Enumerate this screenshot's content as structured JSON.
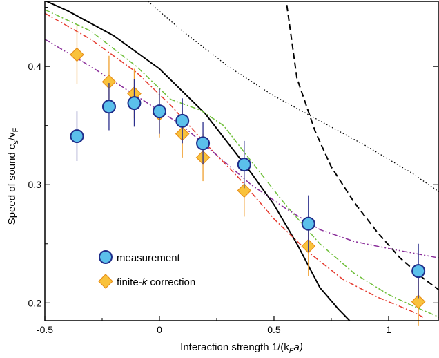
{
  "chart_data": {
    "type": "scatter",
    "xlabel": "Interaction strength  1/(k",
    "xlabel_sub": "F",
    "xlabel_end": "a)",
    "ylabel": "Speed of sound  c",
    "ylabel_sub1": "s",
    "ylabel_mid": "/v",
    "ylabel_sub2": "F",
    "xlim": [
      -0.5,
      1.22
    ],
    "ylim": [
      0.185,
      0.455
    ],
    "xticks": [
      -0.5,
      0,
      0.5,
      1
    ],
    "xtick_labels": [
      "-0.5",
      "0",
      "0.5",
      "1"
    ],
    "yticks": [
      0.2,
      0.3,
      0.4
    ],
    "ytick_labels": [
      "0.2",
      "0.3",
      "0.4"
    ],
    "legend": {
      "position": "bottom-left",
      "entries": [
        {
          "label": "measurement",
          "marker": "circle"
        },
        {
          "label_pre": "finite-",
          "label_ital": "k",
          "label_post": " correction",
          "marker": "diamond"
        }
      ]
    },
    "series": [
      {
        "name": "measurement",
        "marker": "circle",
        "color": "#5bc0eb",
        "edge": "#1f2d8a",
        "err_color": "#2b2e8c",
        "points": [
          {
            "x": -0.36,
            "y": 0.341,
            "err": 0.021
          },
          {
            "x": -0.22,
            "y": 0.366,
            "err": 0.02
          },
          {
            "x": -0.11,
            "y": 0.369,
            "err": 0.02
          },
          {
            "x": 0.0,
            "y": 0.362,
            "err": 0.019
          },
          {
            "x": 0.1,
            "y": 0.354,
            "err": 0.019
          },
          {
            "x": 0.19,
            "y": 0.335,
            "err": 0.018
          },
          {
            "x": 0.37,
            "y": 0.317,
            "err": 0.02
          },
          {
            "x": 0.65,
            "y": 0.267,
            "err": 0.024
          },
          {
            "x": 1.13,
            "y": 0.227,
            "err": 0.023
          }
        ]
      },
      {
        "name": "finite-k correction",
        "marker": "diamond",
        "color": "#f9c23c",
        "edge": "#e8901a",
        "err_color": "#f0a030",
        "points": [
          {
            "x": -0.36,
            "y": 0.41,
            "err": 0.025
          },
          {
            "x": -0.22,
            "y": 0.387,
            "err": 0.022
          },
          {
            "x": -0.11,
            "y": 0.377,
            "err": 0.021
          },
          {
            "x": 0.0,
            "y": 0.36,
            "err": 0.02
          },
          {
            "x": 0.1,
            "y": 0.343,
            "err": 0.02
          },
          {
            "x": 0.19,
            "y": 0.323,
            "err": 0.02
          },
          {
            "x": 0.37,
            "y": 0.295,
            "err": 0.022
          },
          {
            "x": 0.65,
            "y": 0.248,
            "err": 0.025
          },
          {
            "x": 1.13,
            "y": 0.201,
            "err": 0.02
          }
        ]
      }
    ],
    "curves": [
      {
        "id": "black-solid",
        "color": "#000000",
        "dash": "",
        "width": 2,
        "points": [
          [
            -0.55,
            0.46
          ],
          [
            -0.4,
            0.447
          ],
          [
            -0.2,
            0.426
          ],
          [
            0.0,
            0.398
          ],
          [
            0.2,
            0.36
          ],
          [
            0.4,
            0.31
          ],
          [
            0.5,
            0.283
          ],
          [
            0.6,
            0.25
          ],
          [
            0.7,
            0.213
          ],
          [
            0.78,
            0.195
          ],
          [
            0.84,
            0.183
          ]
        ]
      },
      {
        "id": "black-dashed",
        "color": "#000000",
        "dash": "9,5",
        "width": 2,
        "points": [
          [
            0.55,
            0.46
          ],
          [
            0.6,
            0.39
          ],
          [
            0.68,
            0.345
          ],
          [
            0.75,
            0.315
          ],
          [
            0.85,
            0.285
          ],
          [
            0.95,
            0.26
          ],
          [
            1.05,
            0.238
          ],
          [
            1.15,
            0.221
          ],
          [
            1.22,
            0.211
          ]
        ]
      },
      {
        "id": "black-dotted",
        "color": "#000000",
        "dash": "1.5,3",
        "width": 1.3,
        "points": [
          [
            -0.05,
            0.455
          ],
          [
            0.1,
            0.43
          ],
          [
            0.3,
            0.4
          ],
          [
            0.5,
            0.375
          ],
          [
            0.7,
            0.354
          ],
          [
            0.9,
            0.333
          ],
          [
            1.1,
            0.31
          ],
          [
            1.22,
            0.294
          ]
        ]
      },
      {
        "id": "green-dashdot",
        "color": "#6fbf3a",
        "dash": "8,3,2,3",
        "width": 1.5,
        "points": [
          [
            -0.5,
            0.448
          ],
          [
            -0.3,
            0.43
          ],
          [
            -0.1,
            0.4
          ],
          [
            0.05,
            0.372
          ],
          [
            0.18,
            0.363
          ],
          [
            0.28,
            0.35
          ],
          [
            0.4,
            0.32
          ],
          [
            0.55,
            0.283
          ],
          [
            0.7,
            0.25
          ],
          [
            0.85,
            0.225
          ],
          [
            1.0,
            0.207
          ],
          [
            1.1,
            0.198
          ],
          [
            1.22,
            0.188
          ]
        ]
      },
      {
        "id": "red-dashdot",
        "color": "#e53a2e",
        "dash": "8,3,2,3",
        "width": 1.5,
        "points": [
          [
            -0.5,
            0.445
          ],
          [
            -0.3,
            0.423
          ],
          [
            -0.1,
            0.395
          ],
          [
            0.05,
            0.367
          ],
          [
            0.2,
            0.335
          ],
          [
            0.35,
            0.305
          ],
          [
            0.5,
            0.271
          ],
          [
            0.65,
            0.243
          ],
          [
            0.8,
            0.22
          ],
          [
            0.95,
            0.205
          ],
          [
            1.1,
            0.193
          ],
          [
            1.15,
            0.188
          ]
        ]
      },
      {
        "id": "purple-dashdotdot",
        "color": "#8a2e9a",
        "dash": "8,3,2,3,2,3",
        "width": 1.5,
        "points": [
          [
            -0.5,
            0.423
          ],
          [
            -0.3,
            0.4
          ],
          [
            -0.1,
            0.375
          ],
          [
            0.1,
            0.35
          ],
          [
            0.25,
            0.325
          ],
          [
            0.4,
            0.3
          ],
          [
            0.55,
            0.28
          ],
          [
            0.7,
            0.262
          ],
          [
            0.85,
            0.252
          ],
          [
            1.0,
            0.246
          ],
          [
            1.22,
            0.238
          ]
        ]
      }
    ]
  }
}
